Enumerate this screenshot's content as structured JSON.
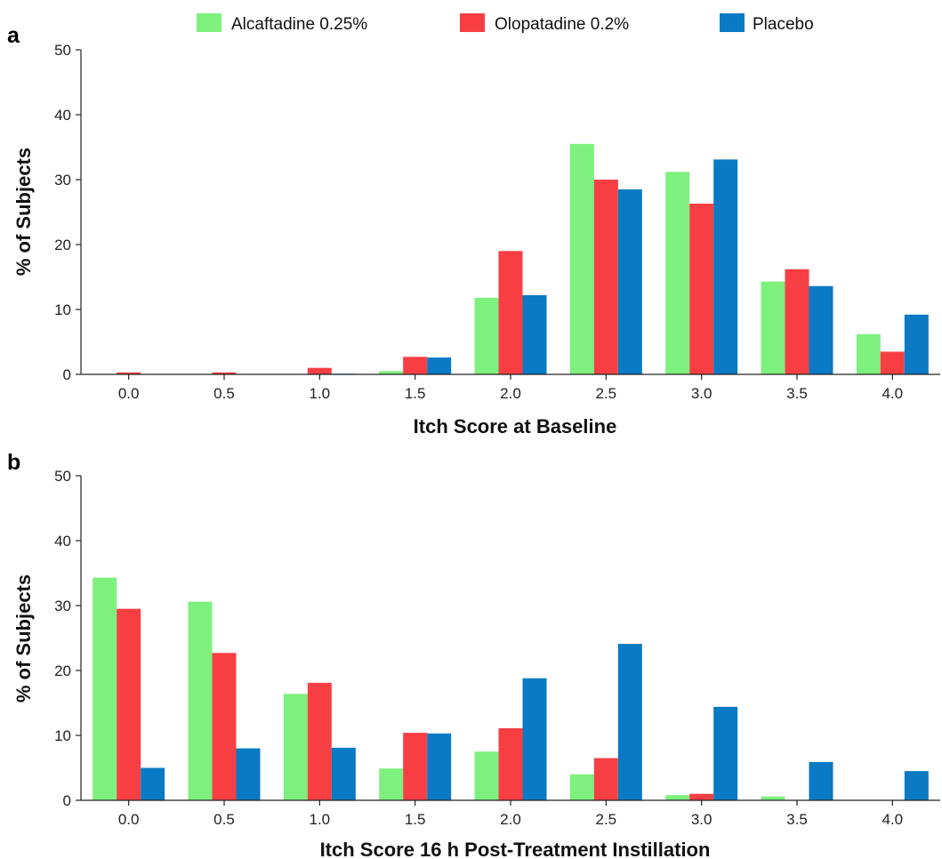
{
  "legend": [
    {
      "name": "Alcaftadine 0.25%",
      "color": "#7ef07e"
    },
    {
      "name": "Olopatadine 0.2%",
      "color": "#f73f43"
    },
    {
      "name": "Placebo",
      "color": "#0a7ac4"
    }
  ],
  "chart_data": [
    {
      "type": "bar",
      "panel": "a",
      "categories": [
        "0.0",
        "0.5",
        "1.0",
        "1.5",
        "2.0",
        "2.5",
        "3.0",
        "3.5",
        "4.0"
      ],
      "series": [
        {
          "name": "Alcaftadine 0.25%",
          "values": [
            0,
            0,
            0,
            0.5,
            11.8,
            35.5,
            31.2,
            14.3,
            6.2
          ]
        },
        {
          "name": "Olopatadine 0.2%",
          "values": [
            0.3,
            0.3,
            1.0,
            2.7,
            19.0,
            30.0,
            26.3,
            16.2,
            3.5
          ]
        },
        {
          "name": "Placebo",
          "values": [
            0,
            0,
            0.1,
            2.6,
            12.2,
            28.5,
            33.1,
            13.6,
            9.2
          ]
        }
      ],
      "xlabel": "Itch Score at Baseline",
      "ylabel": "% of Subjects",
      "ylim": [
        0,
        50
      ],
      "yticks": [
        "0",
        "10",
        "20",
        "30",
        "40",
        "50"
      ],
      "legend_position": "top"
    },
    {
      "type": "bar",
      "panel": "b",
      "categories": [
        "0.0",
        "0.5",
        "1.0",
        "1.5",
        "2.0",
        "2.5",
        "3.0",
        "3.5",
        "4.0"
      ],
      "series": [
        {
          "name": "Alcaftadine 0.25%",
          "values": [
            34.3,
            30.6,
            16.4,
            4.9,
            7.5,
            4.0,
            0.8,
            0.6,
            0
          ]
        },
        {
          "name": "Olopatadine 0.2%",
          "values": [
            29.5,
            22.7,
            18.1,
            10.4,
            11.1,
            6.5,
            1.0,
            0,
            0
          ]
        },
        {
          "name": "Placebo",
          "values": [
            5.0,
            8.0,
            8.1,
            10.3,
            18.8,
            24.1,
            14.4,
            5.9,
            4.5
          ]
        }
      ],
      "xlabel": "Itch Score 16 h Post-Treatment Instillation",
      "ylabel": "% of Subjects",
      "ylim": [
        0,
        50
      ],
      "yticks": [
        "0",
        "10",
        "20",
        "30",
        "40",
        "50"
      ]
    }
  ]
}
